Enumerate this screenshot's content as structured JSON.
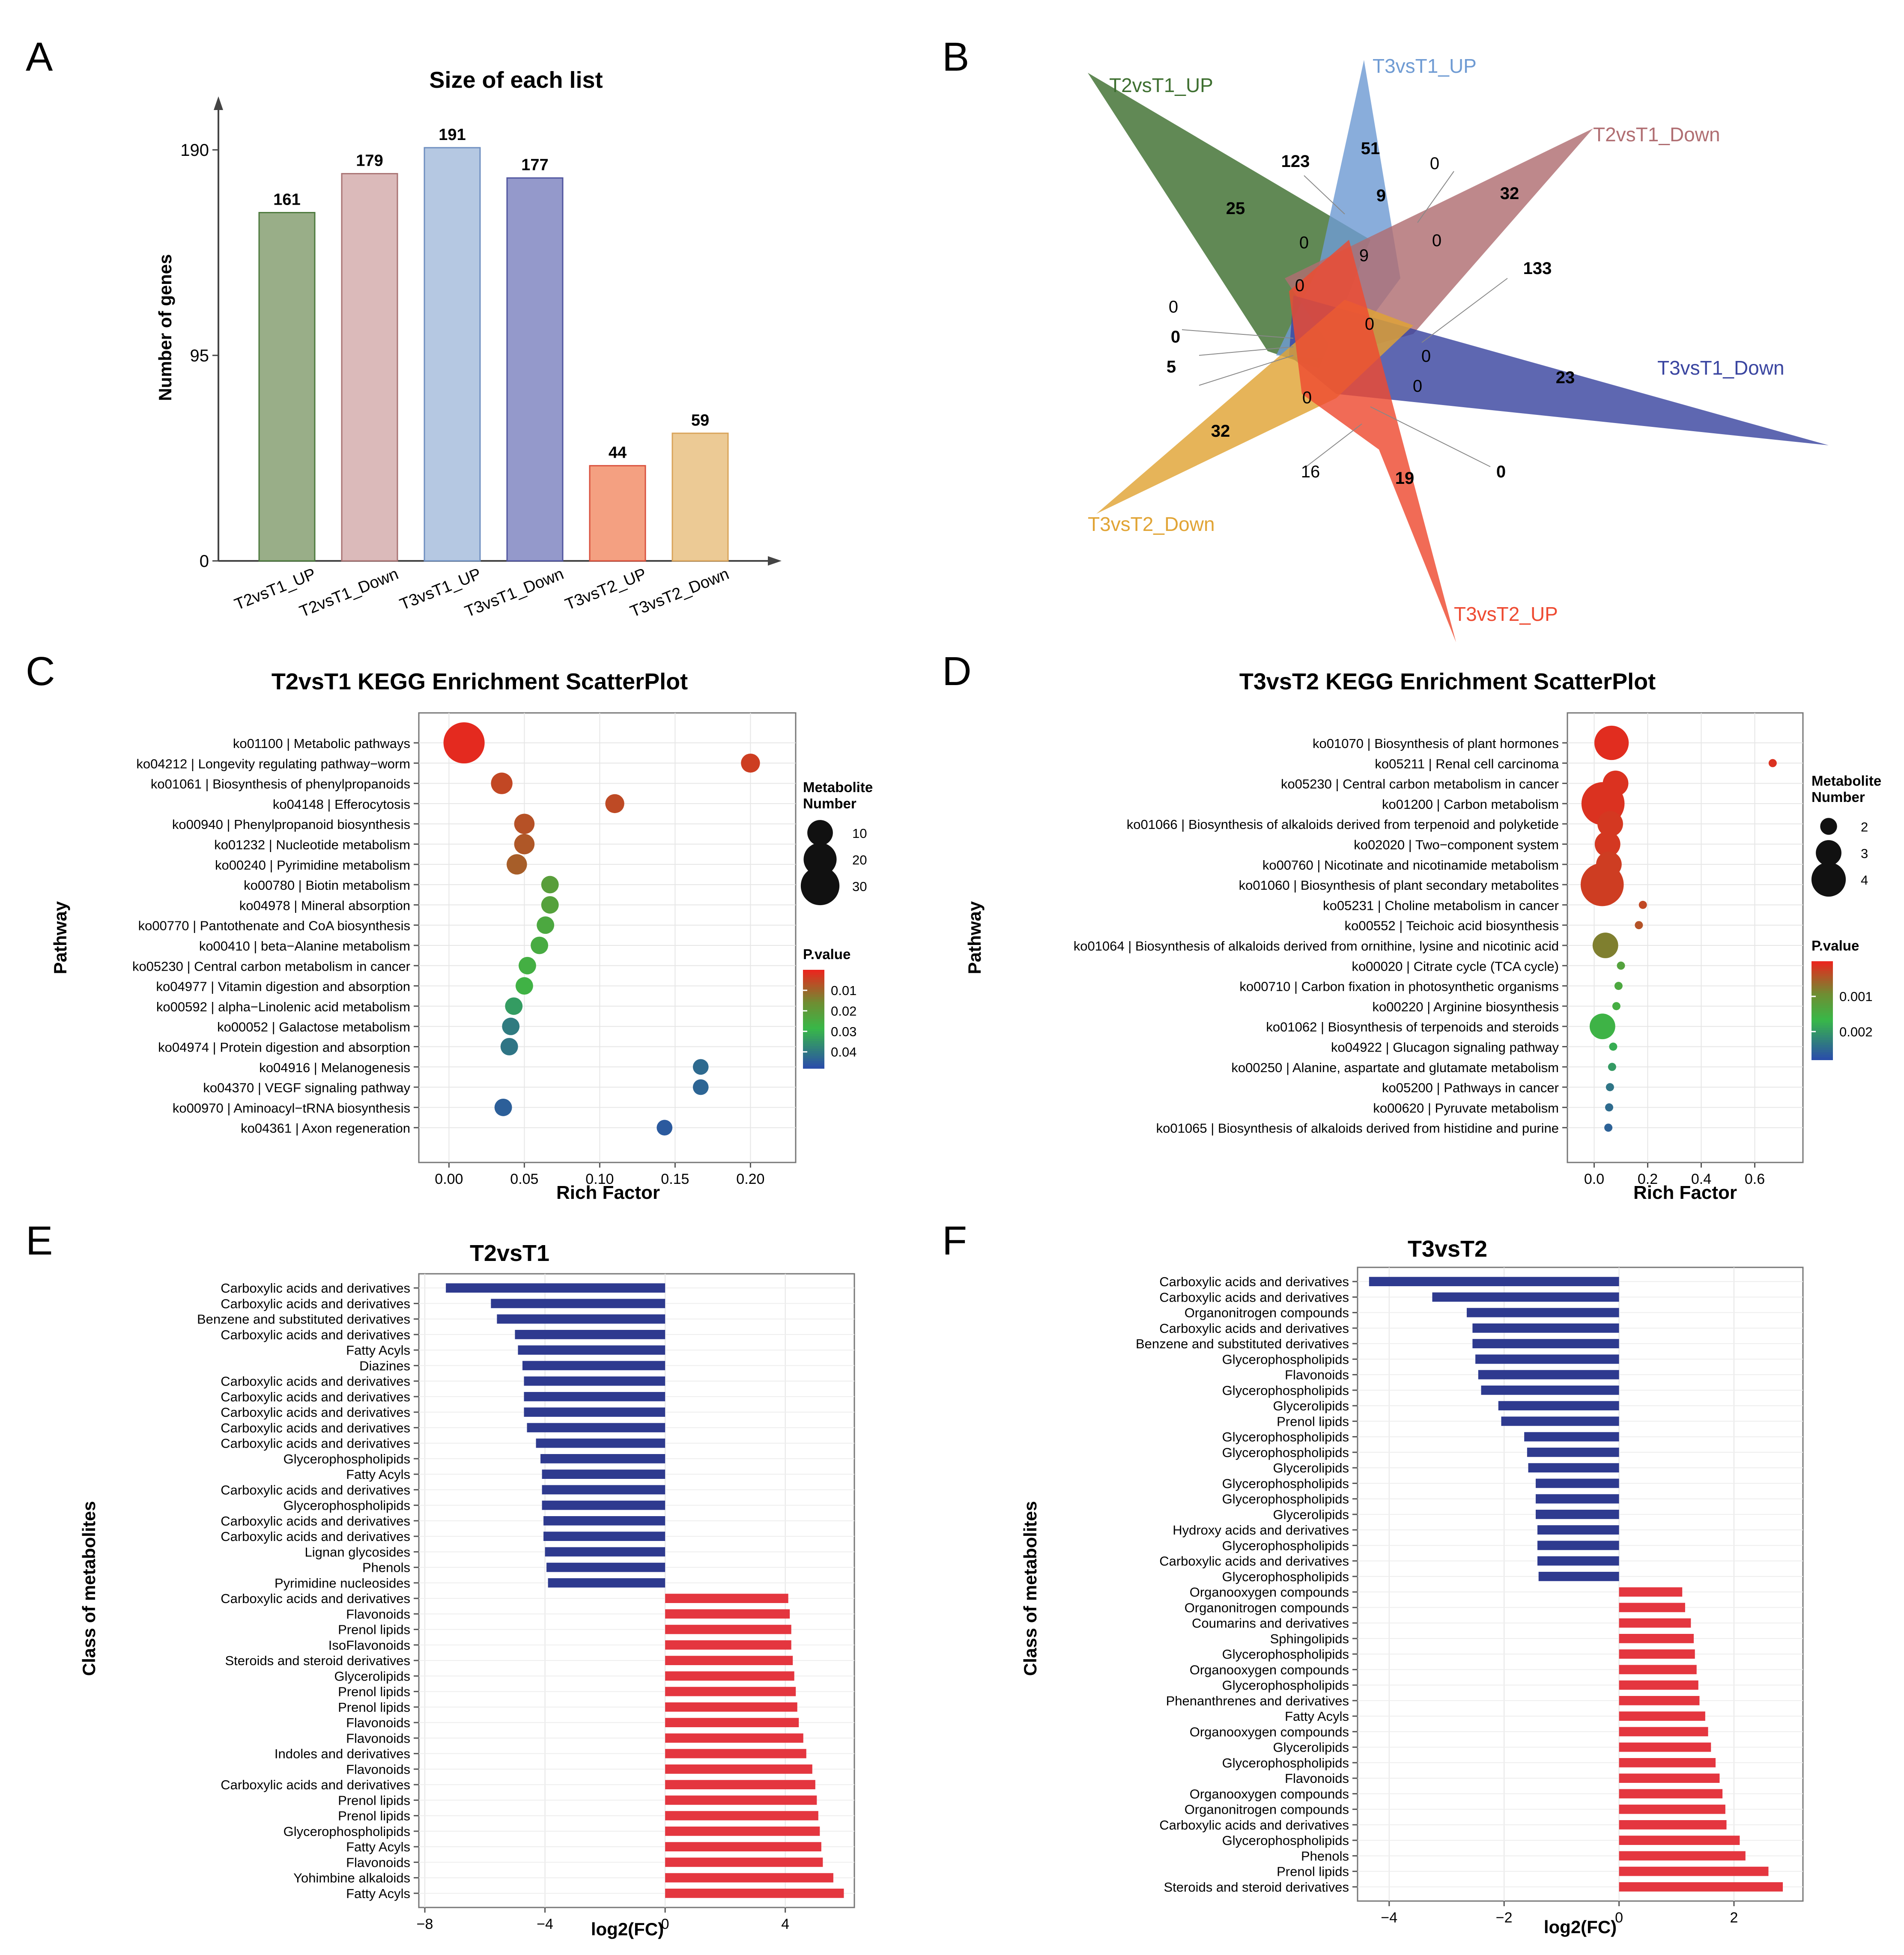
{
  "colors": {
    "bars6": [
      "#99ae88",
      "#dbbaba",
      "#b5c8e2",
      "#9499cb",
      "#f4a081",
      "#ecca95"
    ],
    "bar_edges6": [
      "#4d7a3e",
      "#a97373",
      "#6f8fc0",
      "#50559f",
      "#d9503c",
      "#d9a45a"
    ],
    "down_bar": "#2e3a8f",
    "up_bar": "#e4363f",
    "venn": {
      "T2vsT1_UP": "#3e6f30",
      "T3vsT1_UP": "#6f9bd3",
      "T2vsT1_Down": "#b06e72",
      "T3vsT1_Down": "#3a45a0",
      "T3vsT2_Down": "#e1a435",
      "T3vsT2_UP": "#ee4a31"
    }
  },
  "panel_letters": [
    "A",
    "B",
    "C",
    "D",
    "E",
    "F"
  ],
  "chart_data": [
    {
      "panel": "A",
      "type": "bar",
      "title": "Size of each list",
      "ylabel": "Number of genes",
      "xlabel": "",
      "categories": [
        "T2vsT1_UP",
        "T2vsT1_Down",
        "T3vsT1_UP",
        "T3vsT1_Down",
        "T3vsT2_UP",
        "T3vsT2_Down"
      ],
      "values": [
        161,
        179,
        191,
        177,
        44,
        59
      ],
      "yticks": [
        0,
        95,
        190
      ],
      "ylim": [
        0,
        210
      ]
    },
    {
      "panel": "B",
      "type": "venn",
      "sets": [
        {
          "name": "T2vsT1_UP",
          "color": "#3e6f30"
        },
        {
          "name": "T3vsT1_UP",
          "color": "#6f9bd3"
        },
        {
          "name": "T2vsT1_Down",
          "color": "#b06e72"
        },
        {
          "name": "T3vsT1_Down",
          "color": "#3a45a0"
        },
        {
          "name": "T3vsT2_Down",
          "color": "#e1a435"
        },
        {
          "name": "T3vsT2_UP",
          "color": "#ee4a31"
        }
      ],
      "region_counts": [
        "25",
        "51",
        "32",
        "23",
        "32",
        "19",
        "123",
        "9",
        "0",
        "0",
        "0",
        "0",
        "133",
        "0",
        "0",
        "0",
        "0",
        "0",
        "0",
        "5",
        "16",
        "0",
        "9"
      ]
    },
    {
      "panel": "C",
      "type": "scatter",
      "title": "T2vsT1 KEGG Enrichment ScatterPlot",
      "xlabel": "Rich Factor",
      "ylabel": "Pathway",
      "xlim": [
        -0.02,
        0.23
      ],
      "xticks": [
        0.0,
        0.05,
        0.1,
        0.15,
        0.2
      ],
      "xtick_labels": [
        "0.00",
        "0.05",
        "0.10",
        "0.15",
        "0.20"
      ],
      "pathways": [
        "ko01100 | Metabolic pathways",
        "ko04212 | Longevity regulating pathway−worm",
        "ko01061 | Biosynthesis of phenylpropanoids",
        "ko04148 | Efferocytosis",
        "ko00940 | Phenylpropanoid biosynthesis",
        "ko01232 | Nucleotide metabolism",
        "ko00240 | Pyrimidine metabolism",
        "ko00780 | Biotin metabolism",
        "ko04978 | Mineral absorption",
        "ko00770 | Pantothenate and CoA biosynthesis",
        "ko00410 | beta−Alanine metabolism",
        "ko05230 | Central carbon metabolism in cancer",
        "ko04977 | Vitamin digestion and absorption",
        "ko00592 | alpha−Linolenic acid metabolism",
        "ko00052 | Galactose metabolism",
        "ko04974 | Protein digestion and absorption",
        "ko04916 | Melanogenesis",
        "ko04370 | VEGF signaling pathway",
        "ko00970 | Aminoacyl−tRNA biosynthesis",
        "ko04361 | Axon regeneration"
      ],
      "rich_factor": [
        0.01,
        0.2,
        0.035,
        0.11,
        0.05,
        0.05,
        0.045,
        0.067,
        0.067,
        0.064,
        0.06,
        0.052,
        0.05,
        0.043,
        0.041,
        0.04,
        0.167,
        0.167,
        0.036,
        0.143
      ],
      "metabolite_number": [
        35,
        4,
        6,
        4,
        5,
        5,
        5,
        3,
        3,
        3,
        3,
        3,
        3,
        3,
        3,
        3,
        2,
        2,
        3,
        2
      ],
      "p_value": [
        0.0005,
        0.0035,
        0.005,
        0.0055,
        0.0065,
        0.0075,
        0.0085,
        0.021,
        0.022,
        0.024,
        0.025,
        0.026,
        0.027,
        0.034,
        0.04,
        0.041,
        0.043,
        0.044,
        0.045,
        0.046
      ],
      "size_legend": {
        "title": "Metabolite\nNumber",
        "values": [
          10,
          20,
          30
        ]
      },
      "color_legend": {
        "title": "P.value",
        "ticks": [
          "0.01",
          "0.02",
          "0.03",
          "0.04"
        ],
        "range": [
          0.0,
          0.048
        ]
      }
    },
    {
      "panel": "D",
      "type": "scatter",
      "title": "T3vsT2 KEGG Enrichment ScatterPlot",
      "xlabel": "Rich Factor",
      "ylabel": "Pathway",
      "xlim": [
        -0.1,
        0.78
      ],
      "xticks": [
        0.0,
        0.2,
        0.4,
        0.6
      ],
      "xtick_labels": [
        "0.0",
        "0.2",
        "0.4",
        "0.6"
      ],
      "pathways": [
        "ko01070 | Biosynthesis of plant hormones",
        "ko05211 | Renal cell carcinoma",
        "ko05230 | Central carbon metabolism in cancer",
        "ko01200 | Carbon metabolism",
        "ko01066 | Biosynthesis of alkaloids derived from terpenoid and polyketide",
        "ko02020 | Two−component system",
        "ko00760 | Nicotinate and nicotinamide metabolism",
        "ko01060 | Biosynthesis of plant secondary metabolites",
        "ko05231 | Choline metabolism in cancer",
        "ko00552 | Teichoic acid biosynthesis",
        "ko01064 | Biosynthesis of alkaloids derived from ornithine, lysine and nicotinic acid",
        "ko00020 | Citrate cycle (TCA cycle)",
        "ko00710 | Carbon fixation in photosynthetic organisms",
        "ko00220 | Arginine biosynthesis",
        "ko01062 | Biosynthesis of terpenoids and steroids",
        "ko04922 | Glucagon signaling pathway",
        "ko00250 | Alanine, aspartate and glutamate metabolism",
        "ko05200 | Pathways in cancer",
        "ko00620 | Pyruvate metabolism",
        "ko01065 | Biosynthesis of alkaloids derived from histidine and purine"
      ],
      "rich_factor": [
        0.065,
        0.667,
        0.08,
        0.033,
        0.06,
        0.05,
        0.055,
        0.03,
        0.182,
        0.167,
        0.042,
        0.1,
        0.091,
        0.083,
        0.031,
        0.071,
        0.067,
        0.059,
        0.056,
        0.053
      ],
      "metabolite_number": [
        4,
        1,
        3,
        5,
        3,
        3,
        3,
        5,
        1,
        1,
        3,
        1,
        1,
        1,
        3,
        1,
        1,
        1,
        1,
        1
      ],
      "p_value": [
        5e-05,
        0.0001,
        0.0001,
        0.0001,
        0.00015,
        0.00015,
        0.0002,
        0.0002,
        0.0003,
        0.0004,
        0.0008,
        0.0013,
        0.0014,
        0.0015,
        0.0016,
        0.0018,
        0.002,
        0.0024,
        0.0025,
        0.0026
      ],
      "size_legend": {
        "title": "Metabolite\nNumber",
        "values": [
          2,
          3,
          4
        ]
      },
      "color_legend": {
        "title": "P.value",
        "ticks": [
          "0.001",
          "0.002"
        ],
        "range": [
          0.0,
          0.0028
        ]
      }
    },
    {
      "panel": "E",
      "type": "bar",
      "orientation": "horizontal",
      "title": "T2vsT1",
      "xlabel": "log2(FC)",
      "ylabel": "Class of metabolites",
      "xlim": [
        -8.2,
        6.3
      ],
      "xticks": [
        -8,
        -4,
        0,
        4
      ],
      "categories": [
        "Carboxylic acids and derivatives",
        "Carboxylic acids and derivatives",
        "Benzene and substituted derivatives",
        "Carboxylic acids and derivatives",
        "Fatty Acyls",
        "Diazines",
        "Carboxylic acids and derivatives",
        "Carboxylic acids and derivatives",
        "Carboxylic acids and derivatives",
        "Carboxylic acids and derivatives",
        "Carboxylic acids and derivatives",
        "Glycerophospholipids",
        "Fatty Acyls",
        "Carboxylic acids and derivatives",
        "Glycerophospholipids",
        "Carboxylic acids and derivatives",
        "Carboxylic acids and derivatives",
        "Lignan glycosides",
        "Phenols",
        "Pyrimidine nucleosides",
        "Carboxylic acids and derivatives",
        "Flavonoids",
        "Prenol lipids",
        "IsoFlavonoids",
        "Steroids and steroid derivatives",
        "Glycerolipids",
        "Prenol lipids",
        "Prenol lipids",
        "Flavonoids",
        "Flavonoids",
        "Indoles and derivatives",
        "Flavonoids",
        "Carboxylic acids and derivatives",
        "Prenol lipids",
        "Prenol lipids",
        "Glycerophospholipids",
        "Fatty Acyls",
        "Flavonoids",
        "Yohimbine alkaloids",
        "Fatty Acyls"
      ],
      "values": [
        -7.3,
        -5.8,
        -5.6,
        -5.0,
        -4.9,
        -4.75,
        -4.7,
        -4.7,
        -4.7,
        -4.6,
        -4.3,
        -4.15,
        -4.1,
        -4.1,
        -4.1,
        -4.05,
        -4.05,
        -4.0,
        -3.95,
        -3.9,
        4.1,
        4.15,
        4.2,
        4.2,
        4.25,
        4.3,
        4.35,
        4.4,
        4.45,
        4.6,
        4.7,
        4.9,
        5.0,
        5.05,
        5.1,
        5.15,
        5.2,
        5.25,
        5.6,
        5.95
      ]
    },
    {
      "panel": "F",
      "type": "bar",
      "orientation": "horizontal",
      "title": "T3vsT2",
      "xlabel": "log2(FC)",
      "ylabel": "Class of metabolites",
      "xlim": [
        -4.55,
        3.2
      ],
      "xticks": [
        -4,
        -2,
        0,
        2
      ],
      "categories": [
        "Carboxylic acids and derivatives",
        "Carboxylic acids and derivatives",
        "Organonitrogen compounds",
        "Carboxylic acids and derivatives",
        "Benzene and substituted derivatives",
        "Glycerophospholipids",
        "Flavonoids",
        "Glycerophospholipids",
        "Glycerolipids",
        "Prenol lipids",
        "Glycerophospholipids",
        "Glycerophospholipids",
        "Glycerolipids",
        "Glycerophospholipids",
        "Glycerophospholipids",
        "Glycerolipids",
        "Hydroxy acids and derivatives",
        "Glycerophospholipids",
        "Carboxylic acids and derivatives",
        "Glycerophospholipids",
        "Organooxygen compounds",
        "Organonitrogen compounds",
        "Coumarins and derivatives",
        "Sphingolipids",
        "Glycerophospholipids",
        "Organooxygen compounds",
        "Glycerophospholipids",
        "Phenanthrenes and derivatives",
        "Fatty Acyls",
        "Organooxygen compounds",
        "Glycerolipids",
        "Glycerophospholipids",
        "Flavonoids",
        "Organooxygen compounds",
        "Organonitrogen compounds",
        "Carboxylic acids and derivatives",
        "Glycerophospholipids",
        "Phenols",
        "Prenol lipids",
        "Steroids and steroid derivatives"
      ],
      "values": [
        -4.35,
        -3.25,
        -2.65,
        -2.55,
        -2.55,
        -2.5,
        -2.45,
        -2.4,
        -2.1,
        -2.05,
        -1.65,
        -1.6,
        -1.58,
        -1.45,
        -1.45,
        -1.45,
        -1.42,
        -1.42,
        -1.42,
        -1.4,
        1.1,
        1.15,
        1.25,
        1.3,
        1.32,
        1.35,
        1.38,
        1.4,
        1.5,
        1.55,
        1.6,
        1.68,
        1.75,
        1.8,
        1.85,
        1.87,
        2.1,
        2.2,
        2.6,
        2.85
      ]
    }
  ]
}
